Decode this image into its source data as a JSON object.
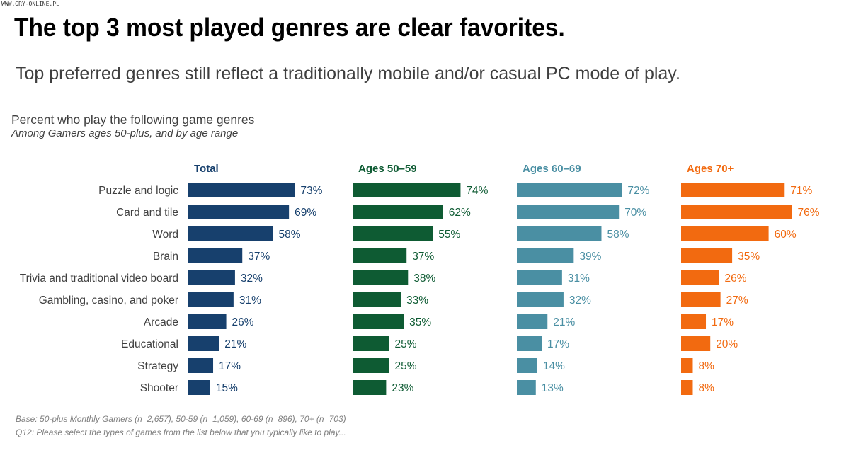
{
  "watermark": "WWW.GRY-ONLINE.PL",
  "title": "The top 3 most played genres are clear favorites.",
  "subtitle": "Top preferred genres still reflect a traditionally mobile and/or casual PC mode of play.",
  "description": "Percent who play the following game genres",
  "description_sub": "Among Gamers ages 50-plus, and by age range",
  "footnotes": [
    "Base: 50-plus Monthly Gamers (n=2,657), 50-59 (n=1,059), 60-69 (n=896), 70+ (n=703)",
    "Q12: Please select the types of games from the list below that you typically like to play..."
  ],
  "chart_data": {
    "type": "bar",
    "orientation": "horizontal",
    "categories": [
      "Puzzle and logic",
      "Card and tile",
      "Word",
      "Brain",
      "Trivia and traditional video board",
      "Gambling, casino, and poker",
      "Arcade",
      "Educational",
      "Strategy",
      "Shooter"
    ],
    "series": [
      {
        "name": "Total",
        "color": "#17406d",
        "values": [
          73,
          69,
          58,
          37,
          32,
          31,
          26,
          21,
          17,
          15
        ]
      },
      {
        "name": "Ages 50–59",
        "color": "#0e5b33",
        "values": [
          74,
          62,
          55,
          37,
          38,
          33,
          35,
          25,
          25,
          23
        ]
      },
      {
        "name": "Ages 60–69",
        "color": "#4a8fa3",
        "values": [
          72,
          70,
          58,
          39,
          31,
          32,
          21,
          17,
          14,
          13
        ]
      },
      {
        "name": "Ages 70+",
        "color": "#f26a10",
        "values": [
          71,
          76,
          60,
          35,
          26,
          27,
          17,
          20,
          8,
          8
        ]
      }
    ],
    "value_suffix": "%",
    "xlim": [
      0,
      100
    ]
  }
}
